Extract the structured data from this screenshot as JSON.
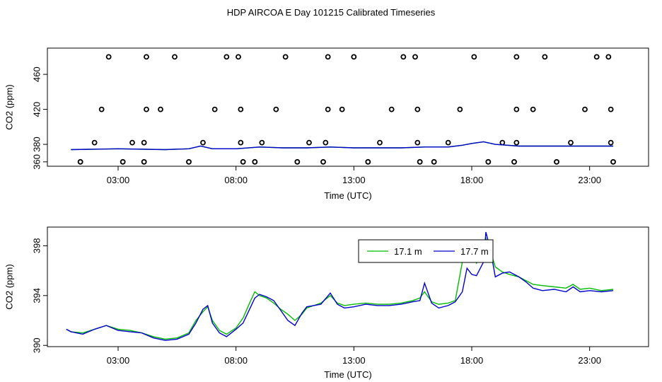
{
  "title": "HDP AIRCOA E  Day 101215  Calibrated Timeseries",
  "colors": {
    "green": "#00bb00",
    "blue": "#0000cc",
    "axis": "#000000",
    "background": "#ffffff"
  },
  "chart_data": [
    {
      "type": "scatter+line",
      "xlabel": "Time (UTC)",
      "ylabel": "CO2 (ppm)",
      "xlim": [
        0.0,
        25.5
      ],
      "ylim": [
        355,
        490
      ],
      "xticks": [
        3,
        8,
        13,
        18,
        23
      ],
      "xtick_labels": [
        "03:00",
        "08:00",
        "13:00",
        "18:00",
        "23:00"
      ],
      "yticks": [
        360,
        380,
        420,
        460
      ],
      "ytick_labels": [
        "360",
        "380",
        "420",
        "460"
      ],
      "legend": null,
      "grid": false,
      "series": [
        {
          "kind": "points",
          "marker": "open-circle",
          "points": [
            [
              1.4,
              360
            ],
            [
              2.0,
              382
            ],
            [
              2.6,
              480
            ],
            [
              2.3,
              420
            ],
            [
              3.2,
              360
            ],
            [
              3.6,
              382
            ],
            [
              4.1,
              360
            ],
            [
              4.1,
              382
            ],
            [
              4.2,
              420
            ],
            [
              4.2,
              480
            ],
            [
              4.8,
              420
            ],
            [
              5.4,
              480
            ],
            [
              6.0,
              360
            ],
            [
              6.6,
              382
            ],
            [
              7.1,
              420
            ],
            [
              7.6,
              480
            ],
            [
              8.1,
              480
            ],
            [
              8.2,
              420
            ],
            [
              8.2,
              382
            ],
            [
              8.3,
              360
            ],
            [
              8.8,
              360
            ],
            [
              9.1,
              382
            ],
            [
              9.7,
              420
            ],
            [
              10.1,
              480
            ],
            [
              10.6,
              360
            ],
            [
              11.1,
              382
            ],
            [
              11.7,
              360
            ],
            [
              11.8,
              382
            ],
            [
              11.9,
              420
            ],
            [
              11.9,
              480
            ],
            [
              12.5,
              420
            ],
            [
              13.0,
              480
            ],
            [
              13.6,
              360
            ],
            [
              14.1,
              382
            ],
            [
              14.6,
              420
            ],
            [
              15.1,
              480
            ],
            [
              15.6,
              480
            ],
            [
              15.7,
              420
            ],
            [
              15.7,
              382
            ],
            [
              15.8,
              360
            ],
            [
              16.4,
              360
            ],
            [
              17.0,
              382
            ],
            [
              17.5,
              420
            ],
            [
              18.1,
              480
            ],
            [
              18.7,
              360
            ],
            [
              19.3,
              382
            ],
            [
              19.8,
              360
            ],
            [
              19.9,
              382
            ],
            [
              19.9,
              420
            ],
            [
              19.9,
              480
            ],
            [
              20.6,
              420
            ],
            [
              21.1,
              480
            ],
            [
              21.6,
              360
            ],
            [
              22.2,
              382
            ],
            [
              22.8,
              420
            ],
            [
              23.3,
              480
            ],
            [
              23.8,
              480
            ],
            [
              23.9,
              420
            ],
            [
              23.9,
              382
            ],
            [
              24.0,
              360
            ]
          ]
        },
        {
          "kind": "line",
          "color": "#00bb00",
          "x": [
            1,
            3,
            5,
            6,
            6.5,
            7,
            8,
            9,
            10,
            11,
            12,
            13,
            14,
            15,
            16,
            17,
            17.6,
            18,
            18.5,
            19,
            20,
            21,
            22,
            23,
            24
          ],
          "y": [
            374,
            375,
            374,
            375,
            378,
            375,
            375,
            377,
            376,
            376,
            377,
            376,
            376,
            376,
            377,
            377,
            379,
            381,
            383,
            380,
            378,
            378,
            378,
            378,
            378
          ]
        },
        {
          "kind": "line",
          "color": "#0000cc",
          "x": [
            1,
            3,
            5,
            6,
            6.5,
            7,
            8,
            9,
            10,
            11,
            12,
            13,
            14,
            15,
            16,
            17,
            17.6,
            18,
            18.5,
            19,
            20,
            21,
            22,
            23,
            24
          ],
          "y": [
            374,
            375,
            374,
            375,
            378,
            375,
            375,
            377,
            376,
            376,
            377,
            376,
            376,
            376,
            377,
            377,
            379,
            381,
            383,
            380,
            378,
            378,
            378,
            378,
            378
          ]
        }
      ]
    },
    {
      "type": "line",
      "xlabel": "Time (UTC)",
      "ylabel": "CO2 (ppm)",
      "xlim": [
        0.0,
        25.5
      ],
      "ylim": [
        389.9,
        399.5
      ],
      "xticks": [
        3,
        8,
        13,
        18,
        23
      ],
      "xtick_labels": [
        "03:00",
        "08:00",
        "13:00",
        "18:00",
        "23:00"
      ],
      "yticks": [
        390,
        394,
        398
      ],
      "ytick_labels": [
        "390",
        "394",
        "398"
      ],
      "legend": "top-center",
      "grid": false,
      "series": [
        {
          "name": "17.1 m",
          "color": "#00bb00",
          "x": [
            0.8,
            1.0,
            1.5,
            2.0,
            2.5,
            3.0,
            3.5,
            4.0,
            4.5,
            5.0,
            5.5,
            6.0,
            6.3,
            6.6,
            6.8,
            7.0,
            7.3,
            7.6,
            8.0,
            8.3,
            8.6,
            8.8,
            9.0,
            9.3,
            9.6,
            9.9,
            10.2,
            10.5,
            10.8,
            11.0,
            11.3,
            11.6,
            12.0,
            12.3,
            12.6,
            13.0,
            13.5,
            14.0,
            14.5,
            15.0,
            15.5,
            15.8,
            16.0,
            16.3,
            16.6,
            17.0,
            17.3,
            17.6,
            17.8,
            18.0,
            18.2,
            18.5,
            18.6,
            18.8,
            19.0,
            19.3,
            19.6,
            20.0,
            20.3,
            20.6,
            21.0,
            21.5,
            22.0,
            22.3,
            22.6,
            23.0,
            23.5,
            24.0
          ],
          "y": [
            391.3,
            391.1,
            391.0,
            391.3,
            391.6,
            391.3,
            391.2,
            391.0,
            390.7,
            390.5,
            390.6,
            391.0,
            392.0,
            392.7,
            393.1,
            392.0,
            391.2,
            390.9,
            391.4,
            392.2,
            393.5,
            394.3,
            394.0,
            393.8,
            393.4,
            392.9,
            392.5,
            392.0,
            392.5,
            393.0,
            393.2,
            393.4,
            394.0,
            393.4,
            393.2,
            393.3,
            393.4,
            393.3,
            393.3,
            393.4,
            393.6,
            393.8,
            394.3,
            393.5,
            393.3,
            393.4,
            393.6,
            396.7,
            397.1,
            397.3,
            396.6,
            397.8,
            398.6,
            397.5,
            396.3,
            395.9,
            395.7,
            395.5,
            395.2,
            394.9,
            394.8,
            394.7,
            394.6,
            394.9,
            394.5,
            394.6,
            394.4,
            394.5
          ]
        },
        {
          "name": "17.7 m",
          "color": "#0000cc",
          "x": [
            0.8,
            1.0,
            1.5,
            2.0,
            2.5,
            3.0,
            3.5,
            4.0,
            4.5,
            5.0,
            5.5,
            6.0,
            6.3,
            6.6,
            6.8,
            7.0,
            7.3,
            7.6,
            8.0,
            8.3,
            8.6,
            8.8,
            9.0,
            9.3,
            9.6,
            9.9,
            10.2,
            10.5,
            10.8,
            11.0,
            11.3,
            11.6,
            12.0,
            12.3,
            12.6,
            13.0,
            13.5,
            14.0,
            14.5,
            15.0,
            15.5,
            15.8,
            16.0,
            16.3,
            16.6,
            17.0,
            17.3,
            17.6,
            17.8,
            18.0,
            18.2,
            18.5,
            18.6,
            18.8,
            19.0,
            19.3,
            19.6,
            20.0,
            20.3,
            20.6,
            21.0,
            21.5,
            22.0,
            22.3,
            22.6,
            23.0,
            23.5,
            24.0
          ],
          "y": [
            391.3,
            391.1,
            390.9,
            391.3,
            391.6,
            391.2,
            391.1,
            391.0,
            390.6,
            390.4,
            390.5,
            390.9,
            391.8,
            392.9,
            393.2,
            391.8,
            391.0,
            390.7,
            391.3,
            391.8,
            393.0,
            393.8,
            394.1,
            393.9,
            393.6,
            392.8,
            392.0,
            391.6,
            392.6,
            393.1,
            393.2,
            393.3,
            394.2,
            393.3,
            393.0,
            393.1,
            393.3,
            393.2,
            393.2,
            393.3,
            393.5,
            393.6,
            395.0,
            393.4,
            393.0,
            393.2,
            393.5,
            394.3,
            396.2,
            395.7,
            395.6,
            396.7,
            399.1,
            397.6,
            395.5,
            395.8,
            395.9,
            395.5,
            395.1,
            394.6,
            394.4,
            394.5,
            394.3,
            394.7,
            394.3,
            394.4,
            394.3,
            394.4
          ]
        }
      ]
    }
  ]
}
